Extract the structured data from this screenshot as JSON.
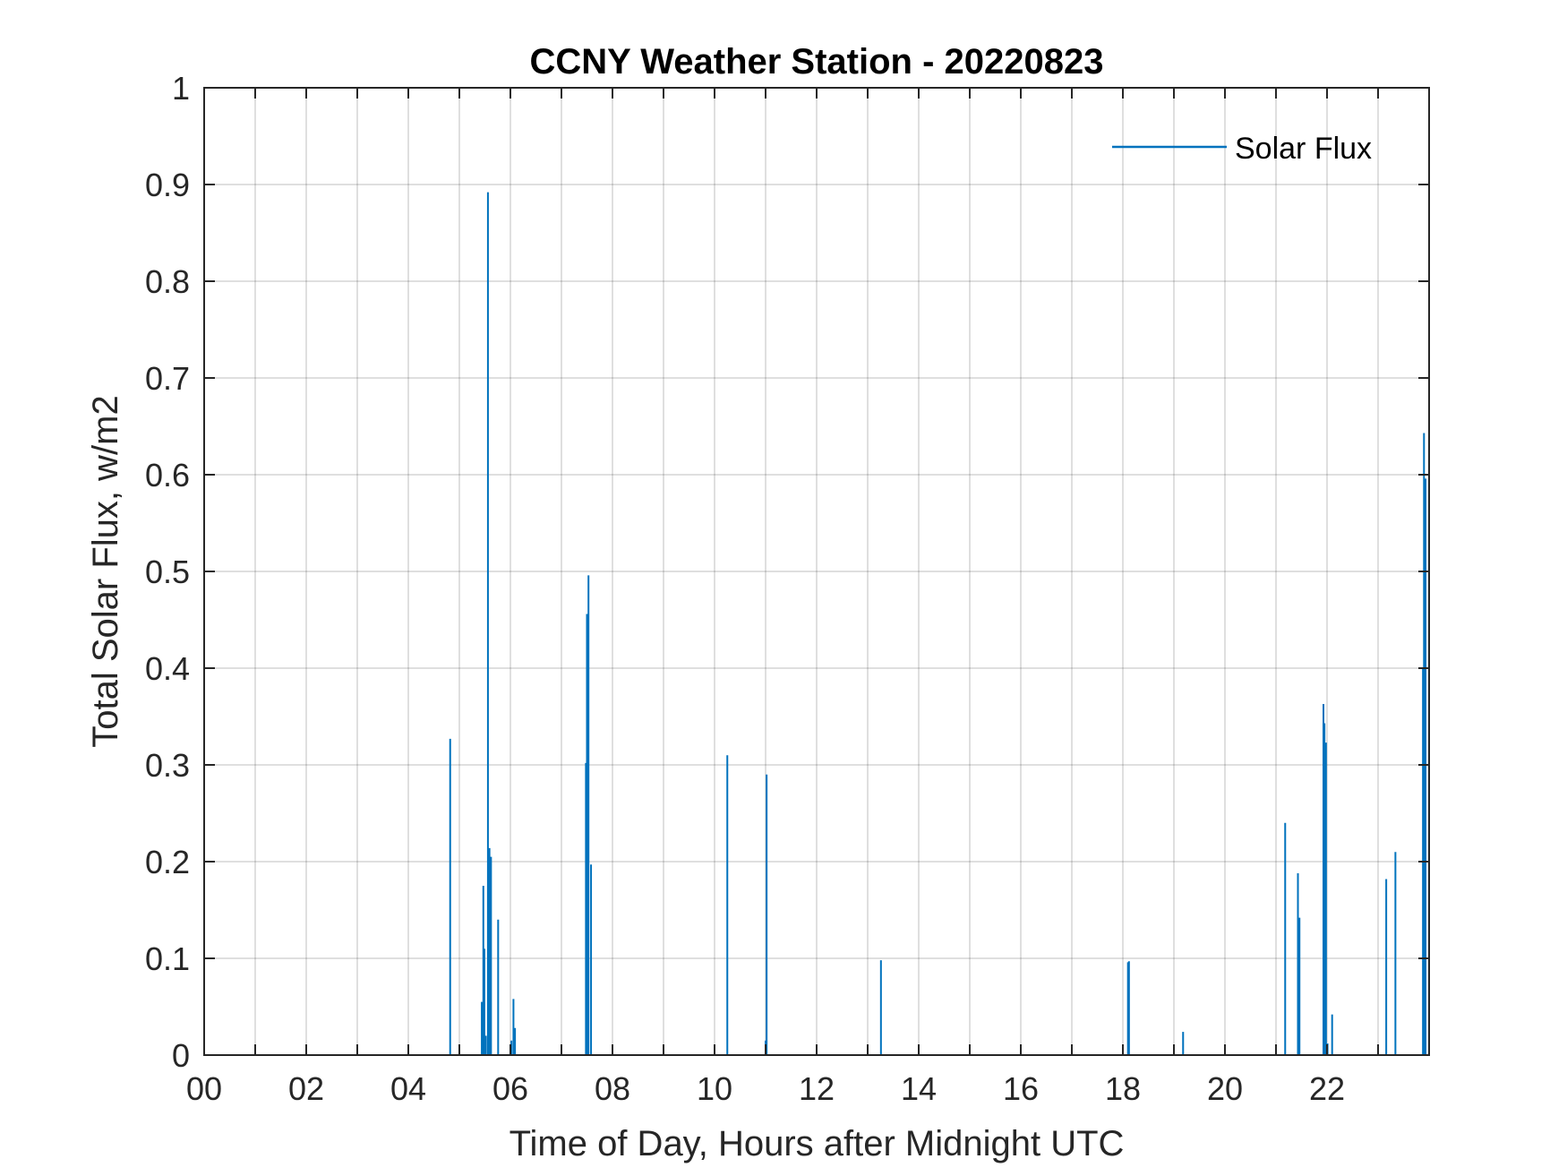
{
  "chart_data": {
    "type": "line",
    "title": "CCNY Weather Station - 20220823",
    "xlabel": "Time of Day, Hours after Midnight UTC",
    "ylabel": "Total Solar Flux, w/m2",
    "xlim": [
      0,
      24
    ],
    "ylim": [
      0,
      1
    ],
    "xticks": [
      0,
      1,
      2,
      3,
      4,
      5,
      6,
      7,
      8,
      9,
      10,
      11,
      12,
      13,
      14,
      15,
      16,
      17,
      18,
      19,
      20,
      21,
      22,
      23
    ],
    "xtick_labels": [
      "00",
      "02",
      "04",
      "06",
      "08",
      "10",
      "12",
      "14",
      "16",
      "18",
      "20",
      "22"
    ],
    "xtick_label_values": [
      0,
      2,
      4,
      6,
      8,
      10,
      12,
      14,
      16,
      18,
      20,
      22
    ],
    "yticks": [
      0,
      0.1,
      0.2,
      0.3,
      0.4,
      0.5,
      0.6,
      0.7,
      0.8,
      0.9,
      1
    ],
    "ytick_labels": [
      "0",
      "0.1",
      "0.2",
      "0.3",
      "0.4",
      "0.5",
      "0.6",
      "0.7",
      "0.8",
      "0.9",
      "1"
    ],
    "grid": true,
    "legend": {
      "entries": [
        "Solar Flux"
      ],
      "location": "top-right"
    },
    "series": [
      {
        "name": "Solar Flux",
        "color": "#0072BD",
        "spikes": [
          {
            "x": 4.82,
            "y": 0.327
          },
          {
            "x": 5.44,
            "y": 0.055
          },
          {
            "x": 5.47,
            "y": 0.175
          },
          {
            "x": 5.49,
            "y": 0.11
          },
          {
            "x": 5.52,
            "y": 0.02
          },
          {
            "x": 5.56,
            "y": 0.892
          },
          {
            "x": 5.59,
            "y": 0.214
          },
          {
            "x": 5.62,
            "y": 0.205
          },
          {
            "x": 5.76,
            "y": 0.14
          },
          {
            "x": 6.02,
            "y": 0.015
          },
          {
            "x": 6.06,
            "y": 0.058
          },
          {
            "x": 6.09,
            "y": 0.028
          },
          {
            "x": 7.48,
            "y": 0.302
          },
          {
            "x": 7.5,
            "y": 0.456
          },
          {
            "x": 7.53,
            "y": 0.496
          },
          {
            "x": 7.58,
            "y": 0.197
          },
          {
            "x": 10.25,
            "y": 0.31
          },
          {
            "x": 11.0,
            "y": 0.015
          },
          {
            "x": 11.02,
            "y": 0.29
          },
          {
            "x": 13.26,
            "y": 0.098
          },
          {
            "x": 18.1,
            "y": 0.096
          },
          {
            "x": 18.12,
            "y": 0.097
          },
          {
            "x": 19.18,
            "y": 0.024
          },
          {
            "x": 21.18,
            "y": 0.24
          },
          {
            "x": 21.43,
            "y": 0.188
          },
          {
            "x": 21.46,
            "y": 0.142
          },
          {
            "x": 21.93,
            "y": 0.363
          },
          {
            "x": 21.95,
            "y": 0.343
          },
          {
            "x": 21.98,
            "y": 0.323
          },
          {
            "x": 22.01,
            "y": 0.012
          },
          {
            "x": 22.1,
            "y": 0.042
          },
          {
            "x": 23.16,
            "y": 0.182
          },
          {
            "x": 23.34,
            "y": 0.21
          },
          {
            "x": 23.88,
            "y": 0.4
          },
          {
            "x": 23.9,
            "y": 0.643
          },
          {
            "x": 23.93,
            "y": 0.596
          }
        ]
      }
    ]
  }
}
